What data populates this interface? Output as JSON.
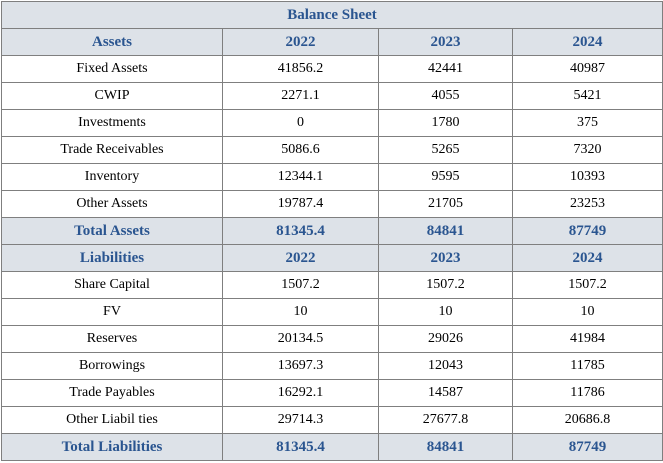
{
  "title": "Balance Sheet",
  "assets": {
    "header": [
      "Assets",
      "2022",
      "2023",
      "2024"
    ],
    "rows": [
      {
        "label": "Fixed Assets",
        "values": [
          "41856.2",
          "42441",
          "40987"
        ]
      },
      {
        "label": "CWIP",
        "values": [
          "2271.1",
          "4055",
          "5421"
        ]
      },
      {
        "label": "Investments",
        "values": [
          "0",
          "1780",
          "375"
        ]
      },
      {
        "label": "Trade Receivables",
        "values": [
          "5086.6",
          "5265",
          "7320"
        ]
      },
      {
        "label": "Inventory",
        "values": [
          "12344.1",
          "9595",
          "10393"
        ]
      },
      {
        "label": "Other Assets",
        "values": [
          "19787.4",
          "21705",
          "23253"
        ]
      }
    ],
    "total": {
      "label": "Total Assets",
      "values": [
        "81345.4",
        "84841",
        "87749"
      ]
    }
  },
  "liabilities": {
    "header": [
      "Liabilities",
      "2022",
      "2023",
      "2024"
    ],
    "rows": [
      {
        "label": "Share Capital",
        "values": [
          "1507.2",
          "1507.2",
          "1507.2"
        ]
      },
      {
        "label": "FV",
        "values": [
          "10",
          "10",
          "10"
        ]
      },
      {
        "label": "Reserves",
        "values": [
          "20134.5",
          "29026",
          "41984"
        ]
      },
      {
        "label": "Borrowings",
        "values": [
          "13697.3",
          "12043",
          "11785"
        ]
      },
      {
        "label": "Trade Payables",
        "values": [
          "16292.1",
          "14587",
          "11786"
        ]
      },
      {
        "label": "Other Liabil ties",
        "values": [
          "29714.3",
          "27677.8",
          "20686.8"
        ]
      }
    ],
    "total": {
      "label": "Total Liabilities",
      "values": [
        "81345.4",
        "84841",
        "87749"
      ]
    }
  },
  "colors": {
    "header_bg": "#dde2e8",
    "header_text": "#2a5590",
    "border": "#7f7f7f"
  }
}
